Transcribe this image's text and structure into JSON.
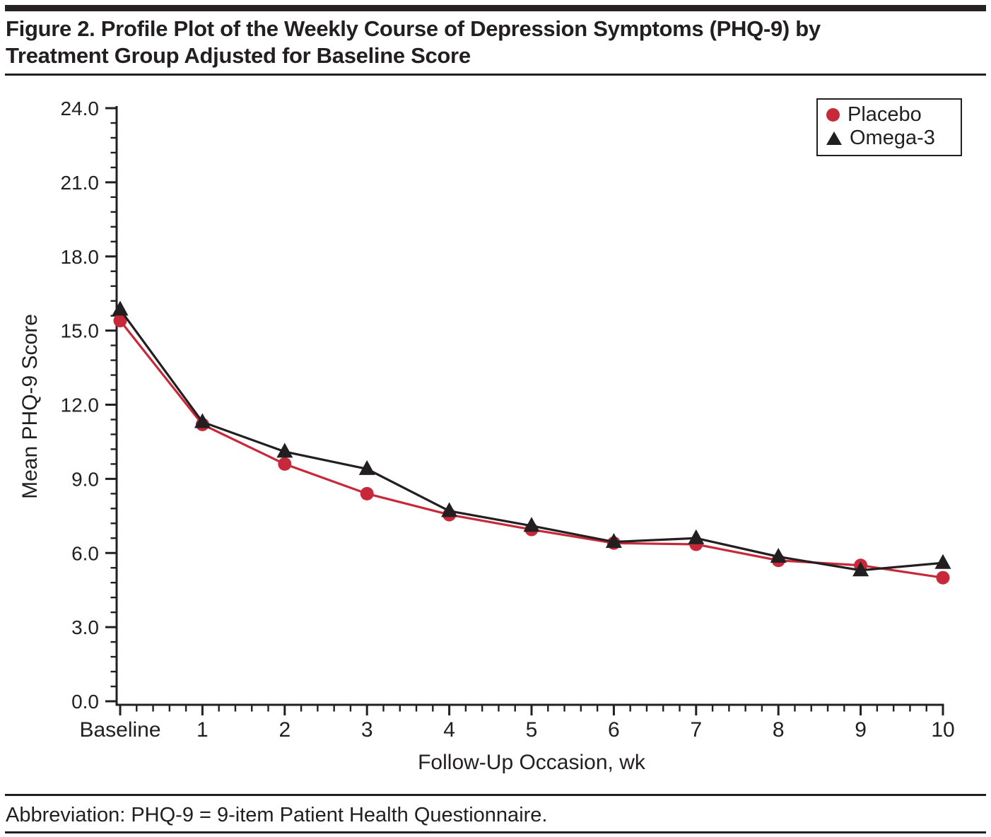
{
  "header": {
    "title_line1": "Figure 2. Profile Plot of the Weekly Course of Depression Symptoms (PHQ-9) by",
    "title_line2": "Treatment Group Adjusted for Baseline Score"
  },
  "chart_data": {
    "type": "line",
    "xlabel": "Follow-Up Occasion, wk",
    "ylabel": "Mean PHQ-9 Score",
    "categories": [
      "Baseline",
      "1",
      "2",
      "3",
      "4",
      "5",
      "6",
      "7",
      "8",
      "9",
      "10"
    ],
    "series": [
      {
        "name": "Placebo",
        "marker": "circle",
        "color": "#C8293A",
        "values": [
          15.4,
          11.2,
          9.6,
          8.4,
          7.55,
          6.95,
          6.4,
          6.35,
          5.7,
          5.5,
          5.0
        ]
      },
      {
        "name": "Omega-3",
        "marker": "triangle",
        "color": "#231F20",
        "values": [
          15.85,
          11.3,
          10.1,
          9.4,
          7.7,
          7.1,
          6.45,
          6.6,
          5.85,
          5.3,
          5.6
        ]
      }
    ],
    "ylim": [
      0,
      24
    ],
    "ytick_step": 3,
    "ytick_labels": [
      "0.0",
      "3.0",
      "6.0",
      "9.0",
      "12.0",
      "15.0",
      "18.0",
      "21.0",
      "24.0"
    ],
    "y_minor_per_major": 5,
    "x_minor_per_major": 5,
    "grid": false,
    "legend_position": "top-right"
  },
  "footer": {
    "abbreviation": "Abbreviation: PHQ-9 = 9-item Patient Health Questionnaire."
  }
}
